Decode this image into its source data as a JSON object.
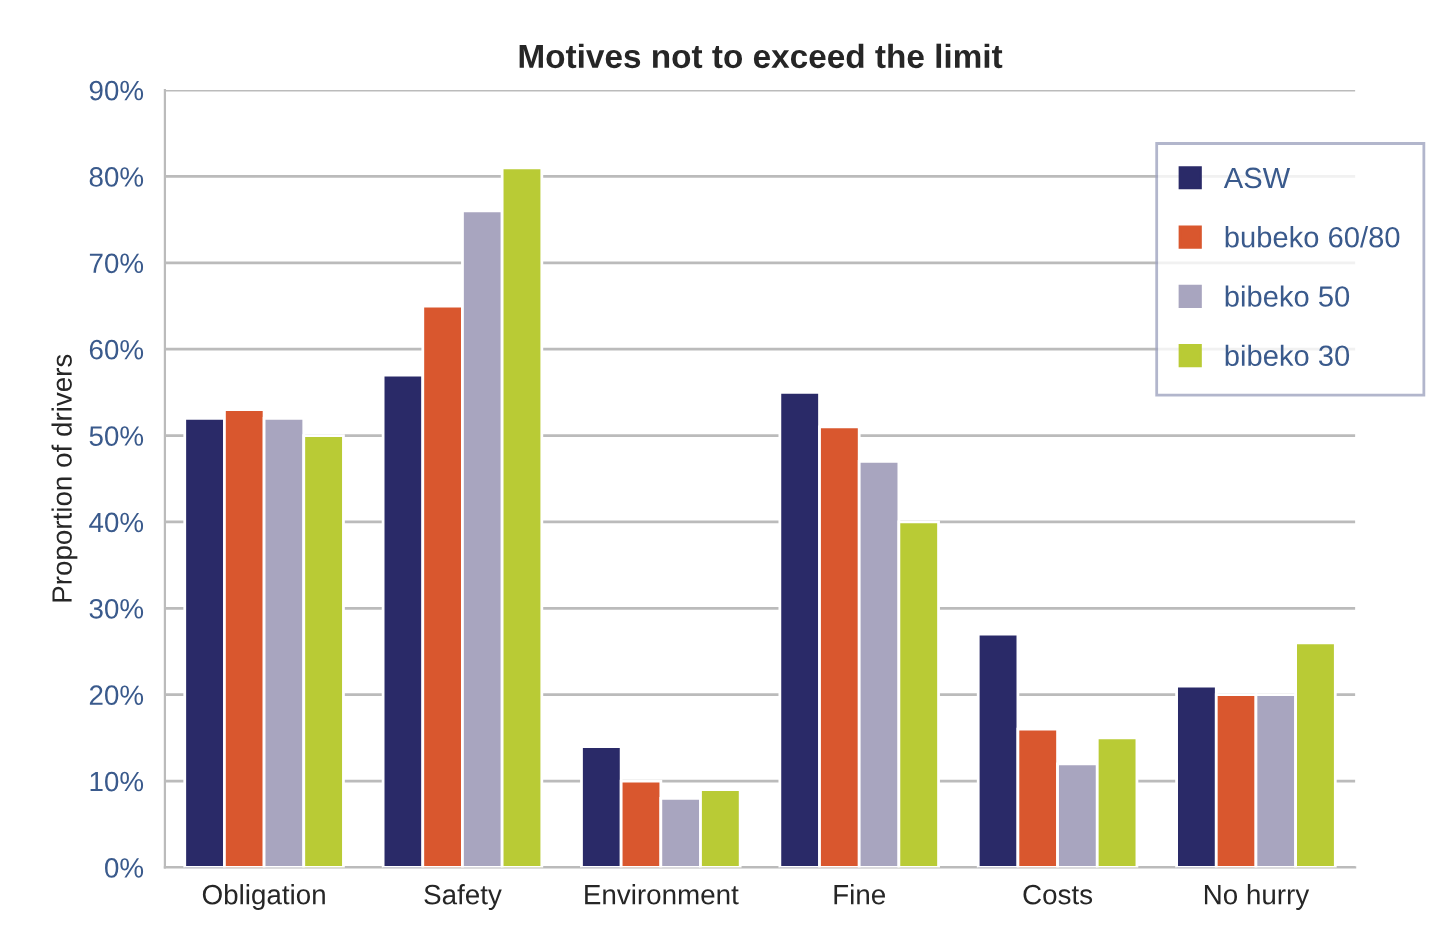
{
  "chart_data": {
    "type": "bar",
    "title": "Motives not to exceed the limit",
    "ylabel": "Proportion of drivers",
    "categories": [
      "Obligation",
      "Safety",
      "Environment",
      "Fine",
      "Costs",
      "No hurry"
    ],
    "series": [
      {
        "name": "ASW",
        "color": "#2a2a68",
        "values": [
          52,
          57,
          14,
          55,
          27,
          21
        ]
      },
      {
        "name": "bubeko 60/80",
        "color": "#d9572e",
        "values": [
          53,
          65,
          10,
          51,
          16,
          20
        ]
      },
      {
        "name": "bibeko 50",
        "color": "#a8a5bf",
        "values": [
          52,
          76,
          8,
          47,
          12,
          20
        ]
      },
      {
        "name": "bibeko 30",
        "color": "#b9cb35",
        "values": [
          50,
          81,
          9,
          40,
          15,
          26
        ]
      }
    ],
    "ylim": [
      0,
      90
    ],
    "yticks": [
      {
        "value": 0,
        "label": "0%"
      },
      {
        "value": 10,
        "label": "10%"
      },
      {
        "value": 20,
        "label": "20%"
      },
      {
        "value": 30,
        "label": "30%"
      },
      {
        "value": 40,
        "label": "40%"
      },
      {
        "value": 50,
        "label": "50%"
      },
      {
        "value": 60,
        "label": "60%"
      },
      {
        "value": 70,
        "label": "70%"
      },
      {
        "value": 80,
        "label": "80%"
      },
      {
        "value": 90,
        "label": "90%"
      }
    ],
    "grid": "y",
    "legend": "top right"
  }
}
